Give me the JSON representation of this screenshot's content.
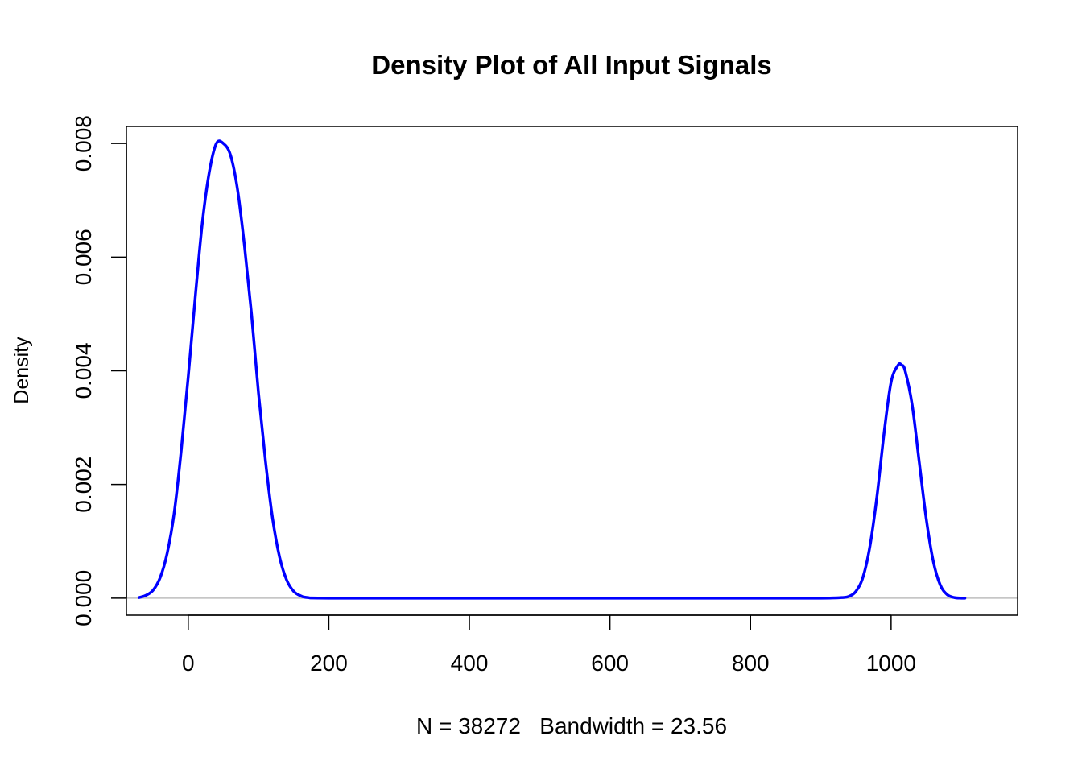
{
  "chart_data": {
    "type": "line",
    "title": "Density Plot of All Input Signals",
    "xlabel": "N = 38272   Bandwidth = 23.56",
    "ylabel": "Density",
    "xlim": [
      -88,
      1180
    ],
    "ylim": [
      -0.0003,
      0.0083
    ],
    "x_ticks": [
      0,
      200,
      400,
      600,
      800,
      1000
    ],
    "x_tick_labels": [
      "0",
      "200",
      "400",
      "600",
      "800",
      "1000"
    ],
    "y_ticks": [
      0,
      0.002,
      0.004,
      0.006,
      0.008
    ],
    "y_tick_labels": [
      "0.000",
      "0.002",
      "0.004",
      "0.006",
      "0.008"
    ],
    "baseline": 0,
    "grid": false,
    "legend": "none",
    "line_color": "#0000ff",
    "baseline_color": "#bebebe",
    "series": [
      {
        "x": [
          -70,
          -60,
          -50,
          -40,
          -30,
          -20,
          -10,
          0,
          10,
          20,
          30,
          40,
          50,
          60,
          70,
          80,
          90,
          100,
          110,
          120,
          130,
          140,
          150,
          160,
          170,
          200,
          400,
          600,
          800,
          900,
          930,
          940,
          950,
          960,
          970,
          980,
          990,
          1000,
          1010,
          1015,
          1020,
          1030,
          1040,
          1050,
          1060,
          1070,
          1080,
          1090,
          1100,
          1105
        ],
        "y": [
          1e-05,
          5e-05,
          0.00014,
          0.00036,
          0.00079,
          0.0015,
          0.0026,
          0.0039,
          0.0053,
          0.0066,
          0.0075,
          0.008,
          0.008,
          0.0078,
          0.0072,
          0.0062,
          0.005,
          0.0036,
          0.0024,
          0.0014,
          0.00072,
          0.00032,
          0.00012,
          4e-05,
          1e-05,
          0,
          0,
          0,
          0,
          0,
          1e-05,
          3e-05,
          0.00012,
          0.00037,
          0.00092,
          0.0018,
          0.0029,
          0.0038,
          0.0041,
          0.0041,
          0.004,
          0.0034,
          0.0024,
          0.0014,
          0.00065,
          0.00023,
          6e-05,
          1e-05,
          0,
          0
        ]
      }
    ]
  }
}
